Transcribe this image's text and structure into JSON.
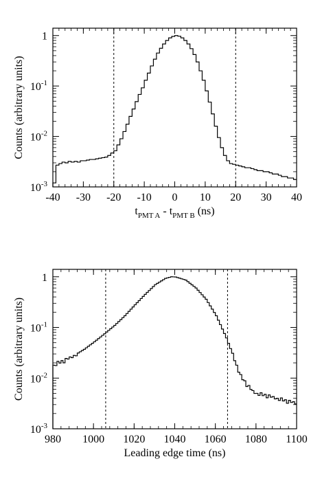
{
  "chart_data": [
    {
      "type": "line",
      "style": "step-histogram",
      "xlabel": {
        "main": "t",
        "sub_a": "PMT A",
        "middle": " - t",
        "sub_b": "PMT B",
        "unit": " (ns)"
      },
      "ylabel": "Counts (arbitrary units)",
      "xlim": [
        -40,
        40
      ],
      "ylim": [
        0.001,
        1.4
      ],
      "yscale": "log",
      "grid": false,
      "xticks": [
        -40,
        -30,
        -20,
        -10,
        0,
        10,
        20,
        30,
        40
      ],
      "xtick_labels": [
        "-40",
        "-30",
        "-20",
        "-10",
        "0",
        "10",
        "20",
        "30",
        "40"
      ],
      "yticks": [
        {
          "value": 1,
          "base": "1",
          "exp": ""
        },
        {
          "value": 0.1,
          "base": "10",
          "exp": "-1"
        },
        {
          "value": 0.01,
          "base": "10",
          "exp": "-2"
        },
        {
          "value": 0.001,
          "base": "10",
          "exp": "-3"
        }
      ],
      "vlines": [
        -20,
        20
      ],
      "bin_width": 1,
      "series": [
        {
          "x": [
            -40,
            -39,
            -38,
            -37,
            -36,
            -35,
            -34,
            -33,
            -32,
            -31,
            -30,
            -29,
            -28,
            -27,
            -26,
            -25,
            -24,
            -23,
            -22,
            -21,
            -20,
            -19,
            -18,
            -17,
            -16,
            -15,
            -14,
            -13,
            -12,
            -11,
            -10,
            -9,
            -8,
            -7,
            -6,
            -5,
            -4,
            -3,
            -2,
            -1,
            0,
            1,
            2,
            3,
            4,
            5,
            6,
            7,
            8,
            9,
            10,
            11,
            12,
            13,
            14,
            15,
            16,
            17,
            18,
            19,
            20,
            21,
            22,
            23,
            24,
            25,
            26,
            27,
            28,
            29,
            30,
            31,
            32,
            33,
            34,
            35,
            36,
            37,
            38,
            39
          ],
          "y": [
            0.0012,
            0.0027,
            0.0029,
            0.0031,
            0.003,
            0.0032,
            0.0031,
            0.0032,
            0.0031,
            0.0033,
            0.0033,
            0.0034,
            0.0035,
            0.0035,
            0.0036,
            0.0037,
            0.0038,
            0.0039,
            0.0042,
            0.0047,
            0.0052,
            0.0068,
            0.009,
            0.0125,
            0.0175,
            0.025,
            0.035,
            0.049,
            0.068,
            0.092,
            0.13,
            0.18,
            0.25,
            0.34,
            0.45,
            0.56,
            0.68,
            0.8,
            0.9,
            0.96,
            1.0,
            0.97,
            0.9,
            0.8,
            0.68,
            0.55,
            0.42,
            0.3,
            0.2,
            0.13,
            0.08,
            0.048,
            0.028,
            0.016,
            0.0095,
            0.006,
            0.0042,
            0.0033,
            0.0029,
            0.0028,
            0.0027,
            0.0026,
            0.0025,
            0.0024,
            0.0024,
            0.0023,
            0.0022,
            0.0021,
            0.0021,
            0.002,
            0.002,
            0.0019,
            0.0018,
            0.0018,
            0.0017,
            0.0016,
            0.0016,
            0.0015,
            0.0015,
            0.0014
          ]
        }
      ]
    },
    {
      "type": "line",
      "style": "step-histogram",
      "xlabel": "Leading edge time (ns)",
      "ylabel": "Counts (arbitrary units)",
      "xlim": [
        980,
        1100
      ],
      "ylim": [
        0.001,
        1.4
      ],
      "yscale": "log",
      "grid": false,
      "xticks": [
        980,
        1000,
        1020,
        1040,
        1060,
        1080,
        1100
      ],
      "xtick_labels": [
        "980",
        "1000",
        "1020",
        "1040",
        "1060",
        "1080",
        "1100"
      ],
      "yticks": [
        {
          "value": 1,
          "base": "1",
          "exp": ""
        },
        {
          "value": 0.1,
          "base": "10",
          "exp": "-1"
        },
        {
          "value": 0.01,
          "base": "10",
          "exp": "-2"
        },
        {
          "value": 0.001,
          "base": "10",
          "exp": "-3"
        }
      ],
      "vlines": [
        1006,
        1066
      ],
      "bin_width": 1,
      "series": [
        {
          "x": [
            980,
            982,
            985,
            990,
            995,
            1000,
            1005,
            1010,
            1015,
            1020,
            1025,
            1030,
            1035,
            1038,
            1040,
            1045,
            1050,
            1055,
            1060,
            1065,
            1068,
            1070,
            1072,
            1075,
            1078,
            1080,
            1085,
            1090,
            1095,
            1100
          ],
          "y": [
            0.018,
            0.02,
            0.022,
            0.028,
            0.037,
            0.052,
            0.075,
            0.11,
            0.17,
            0.28,
            0.45,
            0.7,
            0.93,
            1.0,
            0.99,
            0.86,
            0.6,
            0.36,
            0.17,
            0.062,
            0.03,
            0.018,
            0.011,
            0.0075,
            0.0055,
            0.005,
            0.0045,
            0.004,
            0.0035,
            0.0032
          ]
        }
      ]
    }
  ]
}
